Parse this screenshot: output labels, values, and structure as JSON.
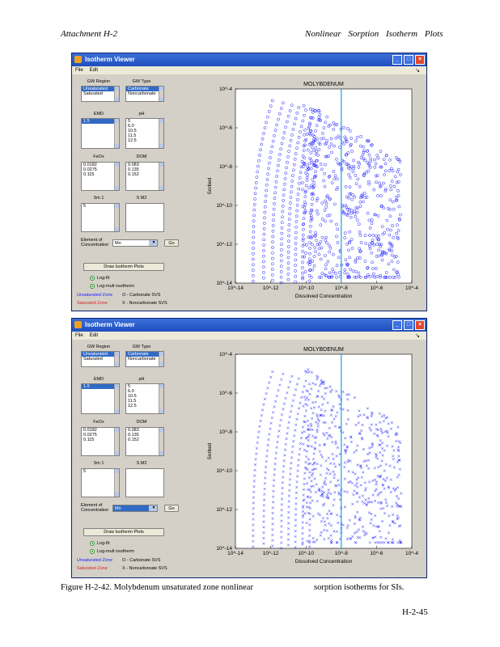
{
  "page_header": {
    "left": "Attachment    H-2",
    "right": "Nonlinear  Sorption  Isotherm  Plots"
  },
  "caption": {
    "part1": "Figure H-2-42. Molybdenum unsaturated zone nonlinear",
    "part2": "sorption isotherms for SIs."
  },
  "page_number": "H-2-45",
  "colors": {
    "titlebar": "#1f4fbf",
    "window_bg": "#d4d0c8",
    "marker": "#1a1aff",
    "cursor_line": "#1aa0d8"
  },
  "windows": [
    {
      "title": "Isotherm Viewer",
      "menu": [
        "File",
        "Edit"
      ],
      "labels": {
        "gw_region": "GW Region",
        "gw_type": "GW Type",
        "emd": "EMD",
        "ph": "pH",
        "feox": "FeOx",
        "doc": "DOM",
        "sm1": "Sm 1",
        "sm2": "S M2"
      },
      "lists": {
        "gw_region": [
          "Unsaturated",
          "Saturated"
        ],
        "gw_type": [
          "Carbonate",
          "Noncarbonate"
        ],
        "emd": [
          "1.5"
        ],
        "ph": [
          "5",
          "6.0",
          "10.5",
          "11.5",
          "12.5"
        ],
        "feox": [
          "0.0182",
          "0.0275",
          "0.115"
        ],
        "doc": [
          "0.083",
          "0.135",
          "0.152"
        ],
        "sm1": [
          "",
          "5"
        ]
      },
      "element_label": "Element of\nConcentration",
      "element_value": "Mo",
      "go_label": "Go",
      "draw_button": "Draw Isotherm Plots",
      "radios": [
        "Log-fit",
        "Log-mult nsotherm"
      ],
      "legend": {
        "unsat": "Unsaturated Zone",
        "sat": "Saturated Zone",
        "carb": "O - Carbonate SVS",
        "noncarb": "X - Noncarbonate SVS"
      },
      "plot_title": "MOLYBDENUM",
      "xlabel": "Dissolved Concentration",
      "ylabel": "Sorbed"
    },
    {
      "title": "Isotherm Viewer",
      "menu": [
        "File",
        "Edit"
      ],
      "labels": {
        "gw_region": "GW Region",
        "gw_type": "GW Type",
        "emd": "EMD",
        "ph": "pH",
        "feox": "FeOx",
        "doc": "DOM",
        "sm1": "Sm 1",
        "sm2": "S M2"
      },
      "lists": {
        "gw_region": [
          "Unsaturated",
          "Saturated"
        ],
        "gw_type": [
          "Carbonate",
          "Noncarbonate"
        ],
        "emd": [
          "1.5"
        ],
        "ph": [
          "5",
          "6.0",
          "10.5",
          "11.5",
          "12.5"
        ],
        "feox": [
          "0.0182",
          "0.0275",
          "0.115"
        ],
        "doc": [
          "0.083",
          "0.135",
          "0.152"
        ],
        "sm1": [
          "",
          "5"
        ]
      },
      "element_label": "Element of\nConcentration",
      "element_value": "Mo",
      "go_label": "Go",
      "draw_button": "Draw Isotherm Plots",
      "radios": [
        "Log-fit",
        "Log-mult nsotherm"
      ],
      "legend": {
        "unsat": "Unsaturated Zone",
        "sat": "Saturated Zone",
        "carb": "O - Carbonate SVS",
        "noncarb": "X - Noncarbonate SVS"
      },
      "plot_title": "MOLYBDENUM",
      "xlabel": "Dissolved Concentration",
      "ylabel": "Sorbed"
    }
  ],
  "chart_data": [
    {
      "type": "scatter",
      "title": "MOLYBDENUM",
      "xlabel": "Dissolved Concentration",
      "ylabel": "Sorbed",
      "xscale": "log",
      "yscale": "log",
      "xlim": [
        1e-14,
        0.0001
      ],
      "ylim": [
        1e-14,
        0.0001
      ],
      "xticks": [
        "10^-14",
        "10^-12",
        "10^-10",
        "10^-8",
        "10^-6",
        "10^-4"
      ],
      "yticks": [
        "10^-4",
        "10^-6",
        "10^-8",
        "10^-10",
        "10^-12",
        "10^-14"
      ],
      "marker": "o",
      "cursor_x": 1e-08,
      "curve_onsets_log10x": [
        -13.0,
        -12.4,
        -11.9,
        -11.4,
        -11.0,
        -10.6,
        -10.2,
        -9.8
      ],
      "series": [
        {
          "x_range": [
            1e-13,
            0.0001
          ],
          "y_range": [
            1e-14,
            1e-05
          ]
        }
      ]
    },
    {
      "type": "scatter",
      "title": "MOLYBDENUM",
      "xlabel": "Dissolved Concentration",
      "ylabel": "Sorbed",
      "xscale": "log",
      "yscale": "log",
      "xlim": [
        1e-14,
        0.0001
      ],
      "ylim": [
        1e-14,
        0.0001
      ],
      "xticks": [
        "10^-14",
        "10^-12",
        "10^-10",
        "10^-8",
        "10^-6",
        "10^-4"
      ],
      "yticks": [
        "10^-4",
        "10^-6",
        "10^-8",
        "10^-10",
        "10^-12",
        "10^-14"
      ],
      "marker": "x",
      "cursor_x": 1e-08,
      "curve_onsets_log10x": [
        -13.0,
        -12.4,
        -11.9,
        -11.4,
        -11.0,
        -10.6,
        -10.2,
        -9.8
      ],
      "series": [
        {
          "x_range": [
            1e-13,
            0.0001
          ],
          "y_range": [
            1e-14,
            1e-05
          ]
        }
      ]
    }
  ]
}
